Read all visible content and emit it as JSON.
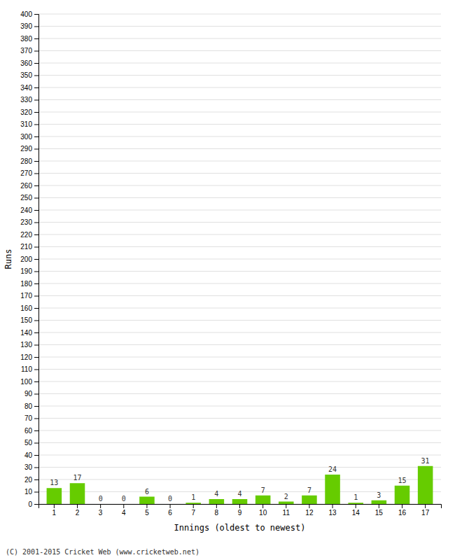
{
  "chart_data": {
    "type": "bar",
    "xlabel": "Innings (oldest to newest)",
    "ylabel": "Runs",
    "categories": [
      "1",
      "2",
      "3",
      "4",
      "5",
      "6",
      "7",
      "8",
      "9",
      "10",
      "11",
      "12",
      "13",
      "14",
      "15",
      "16",
      "17"
    ],
    "values": [
      13,
      17,
      0,
      0,
      6,
      0,
      1,
      4,
      4,
      7,
      2,
      7,
      24,
      1,
      3,
      15,
      31
    ],
    "color": "#66cc00",
    "ylim": [
      0,
      400
    ],
    "yticks": [
      0,
      10,
      20,
      30,
      40,
      50,
      60,
      70,
      80,
      90,
      100,
      110,
      120,
      130,
      140,
      150,
      160,
      170,
      180,
      190,
      200,
      210,
      220,
      230,
      240,
      250,
      260,
      270,
      280,
      290,
      300,
      310,
      320,
      330,
      340,
      350,
      360,
      370,
      380,
      390,
      400
    ],
    "grid": true,
    "data_labels": true,
    "footer": "(C) 2001-2015 Cricket Web (www.cricketweb.net)"
  }
}
